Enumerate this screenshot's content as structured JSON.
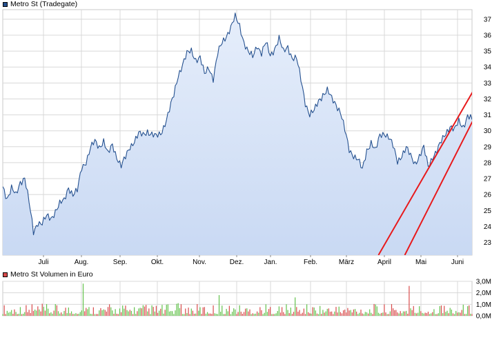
{
  "colors": {
    "price_line": "#24508f",
    "area_top": "#e6eefb",
    "area_bottom": "#c9d9f3",
    "grid": "#d8d8d8",
    "trend": "#e8191b",
    "vol_up": "#62c14b",
    "vol_down": "#d84a4a",
    "legend_price": "#24508f",
    "legend_volume": "#d84a4a"
  },
  "legend": {
    "price": "Metro St (Tradegate)",
    "volume": "Metro St Volumen in Euro"
  },
  "chart_data": [
    {
      "type": "line",
      "title": "Metro St (Tradegate)",
      "ylim": [
        22.2,
        37.6
      ],
      "yticks": [
        23,
        24,
        25,
        26,
        27,
        28,
        29,
        30,
        31,
        32,
        33,
        34,
        35,
        36,
        37
      ],
      "x_categories": [
        "Juli",
        "Aug.",
        "Sep.",
        "Okt.",
        "Nov.",
        "Dez.",
        "Jan.",
        "Feb.",
        "März",
        "April",
        "Mai",
        "Juni"
      ],
      "series": [
        {
          "name": "Metro St (Tradegate)",
          "keypoints": [
            [
              0,
              26.5
            ],
            [
              3,
              25.8
            ],
            [
              6,
              26.4
            ],
            [
              9,
              25.9
            ],
            [
              12,
              26.8
            ],
            [
              15,
              27.1
            ],
            [
              18,
              25.5
            ],
            [
              21,
              23.6
            ],
            [
              24,
              24.3
            ],
            [
              27,
              24.2
            ],
            [
              30,
              24.6
            ],
            [
              33,
              24.5
            ],
            [
              36,
              25.0
            ],
            [
              39,
              25.4
            ],
            [
              42,
              25.6
            ],
            [
              45,
              26.5
            ],
            [
              48,
              26.0
            ],
            [
              51,
              26.2
            ],
            [
              54,
              27.7
            ],
            [
              57,
              28.1
            ],
            [
              60,
              28.9
            ],
            [
              63,
              29.3
            ],
            [
              66,
              29.0
            ],
            [
              69,
              29.4
            ],
            [
              72,
              28.5
            ],
            [
              75,
              29.1
            ],
            [
              78,
              28.4
            ],
            [
              81,
              27.8
            ],
            [
              84,
              28.3
            ],
            [
              87,
              29.0
            ],
            [
              90,
              29.4
            ],
            [
              93,
              29.8
            ],
            [
              96,
              29.7
            ],
            [
              99,
              30.0
            ],
            [
              102,
              29.8
            ],
            [
              105,
              29.6
            ],
            [
              108,
              29.8
            ],
            [
              111,
              30.5
            ],
            [
              114,
              31.3
            ],
            [
              117,
              32.2
            ],
            [
              120,
              33.5
            ],
            [
              123,
              34.2
            ],
            [
              126,
              34.8
            ],
            [
              129,
              35.0
            ],
            [
              132,
              34.5
            ],
            [
              135,
              34.6
            ],
            [
              138,
              33.5
            ],
            [
              141,
              34.0
            ],
            [
              144,
              33.3
            ],
            [
              147,
              34.8
            ],
            [
              150,
              35.5
            ],
            [
              153,
              36.0
            ],
            [
              156,
              36.5
            ],
            [
              159,
              37.1
            ],
            [
              162,
              36.6
            ],
            [
              165,
              35.6
            ],
            [
              168,
              34.9
            ],
            [
              171,
              34.6
            ],
            [
              174,
              35.4
            ],
            [
              177,
              34.9
            ],
            [
              180,
              35.5
            ],
            [
              183,
              34.7
            ],
            [
              186,
              35.2
            ],
            [
              189,
              35.8
            ],
            [
              192,
              34.9
            ],
            [
              195,
              35.3
            ],
            [
              198,
              34.6
            ],
            [
              201,
              34.5
            ],
            [
              204,
              33.2
            ],
            [
              207,
              31.8
            ],
            [
              210,
              31.0
            ],
            [
              213,
              31.2
            ],
            [
              216,
              31.9
            ],
            [
              219,
              32.3
            ],
            [
              222,
              32.5
            ],
            [
              225,
              32.0
            ],
            [
              228,
              31.7
            ],
            [
              231,
              31.2
            ],
            [
              234,
              30.0
            ],
            [
              237,
              28.8
            ],
            [
              240,
              28.5
            ],
            [
              243,
              28.2
            ],
            [
              246,
              27.5
            ],
            [
              249,
              28.8
            ],
            [
              252,
              29.3
            ],
            [
              255,
              28.7
            ],
            [
              258,
              29.7
            ],
            [
              261,
              29.9
            ],
            [
              264,
              29.6
            ],
            [
              267,
              29.0
            ],
            [
              270,
              28.1
            ],
            [
              273,
              28.5
            ],
            [
              276,
              28.9
            ],
            [
              279,
              28.4
            ],
            [
              282,
              28.0
            ],
            [
              285,
              28.4
            ],
            [
              288,
              28.9
            ],
            [
              291,
              27.8
            ],
            [
              294,
              28.4
            ],
            [
              297,
              28.7
            ],
            [
              300,
              29.3
            ],
            [
              303,
              29.9
            ],
            [
              306,
              30.3
            ],
            [
              309,
              30.0
            ],
            [
              312,
              30.6
            ],
            [
              315,
              30.3
            ],
            [
              318,
              30.9
            ],
            [
              321,
              30.7
            ]
          ]
        }
      ],
      "trendlines": [
        {
          "start": [
            257,
            22.2
          ],
          "end": [
            321,
            32.5
          ]
        },
        {
          "start": [
            275,
            22.2
          ],
          "end": [
            321,
            30.7
          ]
        }
      ]
    },
    {
      "type": "bar",
      "title": "Metro St Volumen in Euro",
      "ylim": [
        0,
        3.0
      ],
      "yticks": [
        "0,0M",
        "1,0M",
        "2,0M",
        "3,0M"
      ],
      "series": [
        {
          "name": "Metro St Volumen in Euro",
          "unit": "M Euro",
          "peaks": [
            [
              20,
              1.0
            ],
            [
              55,
              2.8
            ],
            [
              120,
              1.1
            ],
            [
              148,
              1.8
            ],
            [
              200,
              1.6
            ],
            [
              278,
              2.6
            ],
            [
              300,
              0.9
            ]
          ]
        }
      ]
    }
  ]
}
